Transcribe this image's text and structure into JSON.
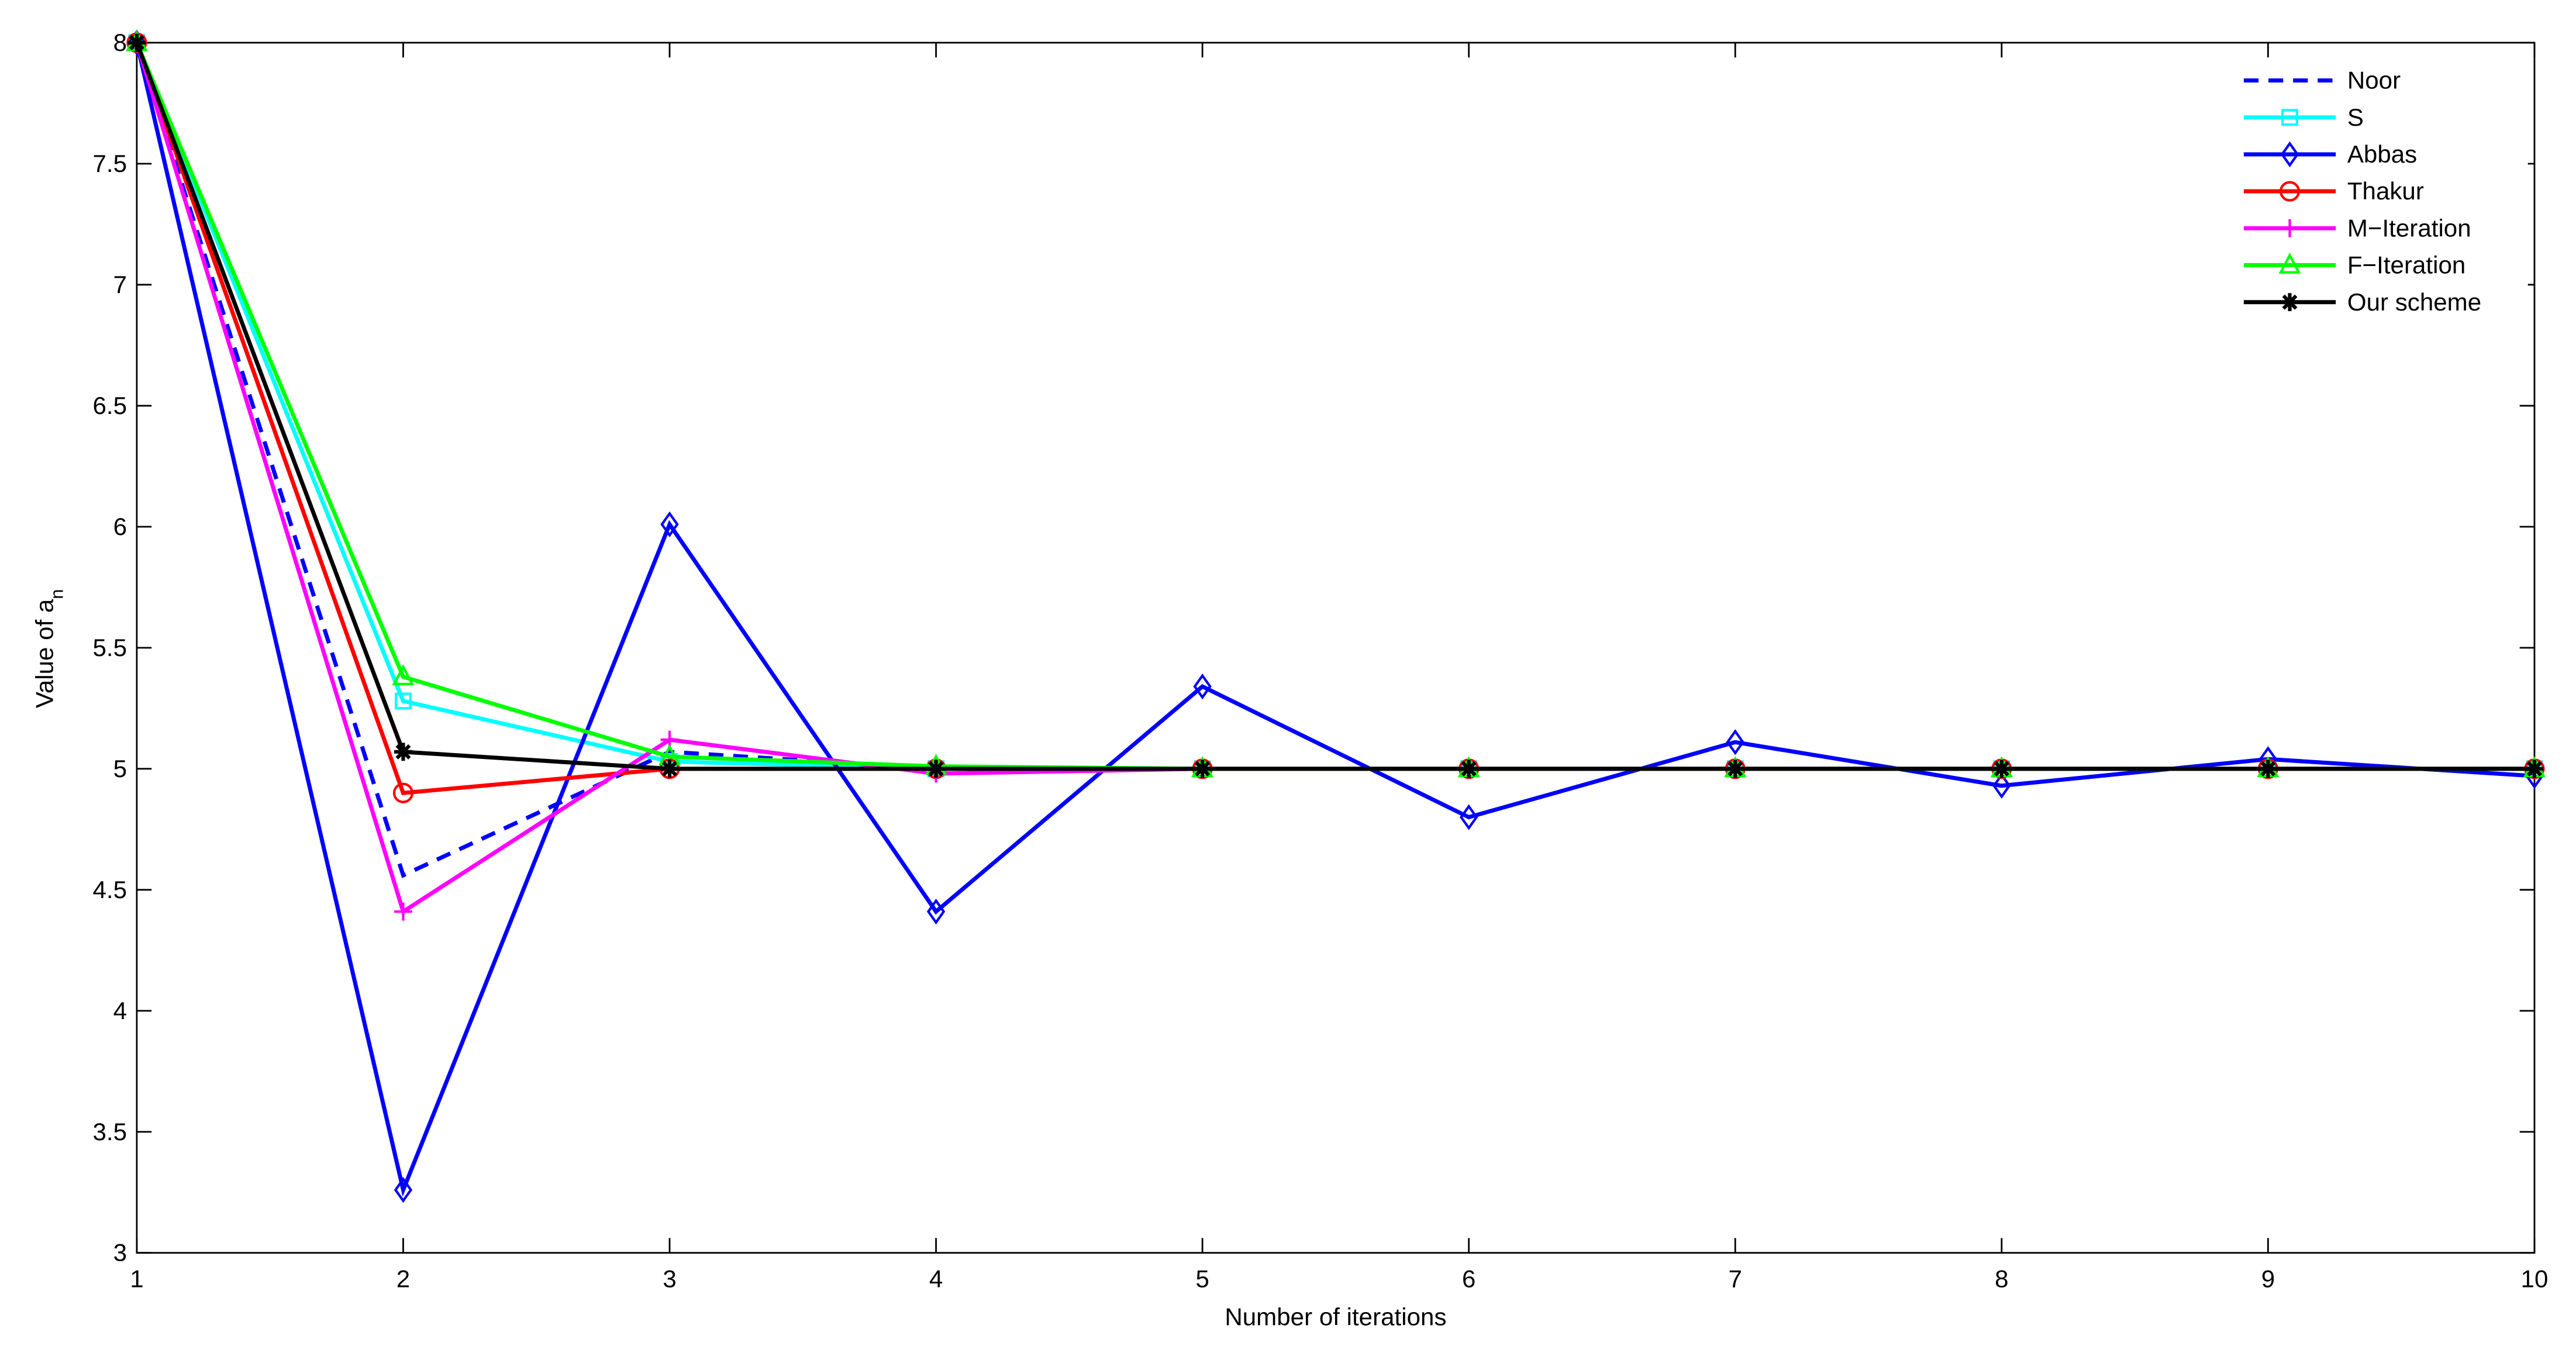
{
  "chart_data": {
    "type": "line",
    "x_label": "Number of iterations",
    "y_label": "Value of a",
    "y_label_subscript": "n",
    "x": [
      1,
      2,
      3,
      4,
      5,
      6,
      7,
      8,
      9,
      10
    ],
    "xlim": [
      1,
      10
    ],
    "xticks": [
      1,
      2,
      3,
      4,
      5,
      6,
      7,
      8,
      9,
      10
    ],
    "ylim": [
      3,
      8
    ],
    "yticks": [
      3,
      3.5,
      4,
      4.5,
      5,
      5.5,
      6,
      6.5,
      7,
      7.5,
      8
    ],
    "grid": false,
    "legend": "upper right",
    "series": [
      {
        "name": "Noor",
        "color": "#0000ff",
        "dash": true,
        "marker": "none",
        "values": [
          8,
          4.56,
          5.07,
          5.0,
          5.0,
          5.0,
          5.0,
          5.0,
          5.0,
          5.0
        ]
      },
      {
        "name": "S",
        "color": "#00ffff",
        "dash": false,
        "marker": "square",
        "values": [
          8,
          5.28,
          5.03,
          5.0,
          5.0,
          5.0,
          5.0,
          5.0,
          5.0,
          5.0
        ]
      },
      {
        "name": "Abbas",
        "color": "#0000ff",
        "dash": false,
        "marker": "diamond",
        "values": [
          8,
          3.26,
          6.01,
          4.41,
          5.34,
          4.8,
          5.11,
          4.93,
          5.04,
          4.97
        ]
      },
      {
        "name": "Thakur",
        "color": "#ff0000",
        "dash": false,
        "marker": "circle",
        "values": [
          8,
          4.9,
          5.0,
          5.0,
          5.0,
          5.0,
          5.0,
          5.0,
          5.0,
          5.0
        ]
      },
      {
        "name": "M−Iteration",
        "color": "#ff00ff",
        "dash": false,
        "marker": "plus",
        "values": [
          8,
          4.41,
          5.12,
          4.98,
          5.0,
          5.0,
          5.0,
          5.0,
          5.0,
          5.0
        ]
      },
      {
        "name": "F−Iteration",
        "color": "#00ff00",
        "dash": false,
        "marker": "triangle",
        "values": [
          8,
          5.38,
          5.05,
          5.01,
          5.0,
          5.0,
          5.0,
          5.0,
          5.0,
          5.0
        ]
      },
      {
        "name": "Our scheme",
        "color": "#000000",
        "dash": false,
        "marker": "star",
        "values": [
          8,
          5.07,
          5.0,
          5.0,
          5.0,
          5.0,
          5.0,
          5.0,
          5.0,
          5.0
        ]
      }
    ]
  }
}
